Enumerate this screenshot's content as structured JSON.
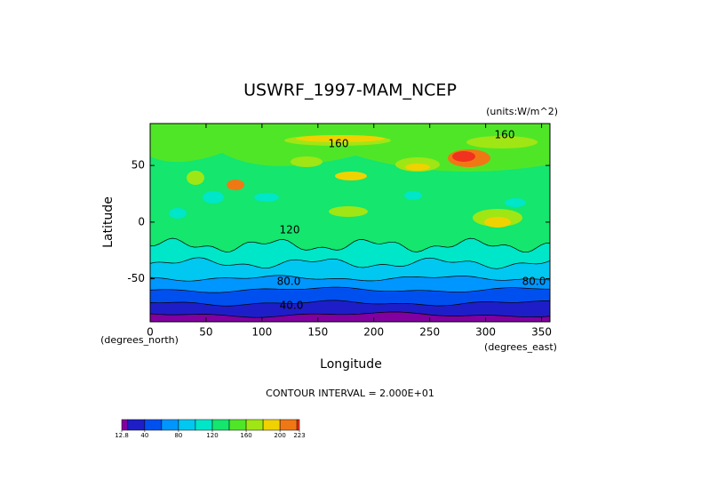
{
  "chart_data": {
    "type": "contour-map",
    "title": "USWRF_1997-MAM_NCEP",
    "units": "(units:W/m^2)",
    "x_label": "Longitude",
    "y_label": "Latitude",
    "x_units": "(degrees_east)",
    "y_units": "(degrees_north)",
    "xlim": [
      0,
      357.5
    ],
    "ylim": [
      -88,
      87
    ],
    "xticks": [
      0,
      50,
      100,
      150,
      200,
      250,
      300,
      350
    ],
    "yticks": [
      -50,
      0,
      50
    ],
    "contour_labels": [
      "160",
      "160",
      "120",
      "80.0",
      "80.0",
      "40.0"
    ],
    "contour_interval": "CONTOUR INTERVAL = 2.000E+01",
    "colorbar": {
      "clim": [
        12.8,
        223
      ],
      "levels": [
        12.8,
        20,
        40,
        60,
        80,
        100,
        120,
        140,
        160,
        180,
        200,
        220,
        223
      ],
      "colors": [
        "#8200a0",
        "#1e1ec8",
        "#0050f0",
        "#0096ff",
        "#00c8f0",
        "#00e6c8",
        "#14e66e",
        "#50e628",
        "#a0e614",
        "#f0d200",
        "#f07814",
        "#f0321e"
      ],
      "ticks": [
        12.8,
        40,
        80,
        120,
        160,
        200,
        223
      ]
    }
  }
}
